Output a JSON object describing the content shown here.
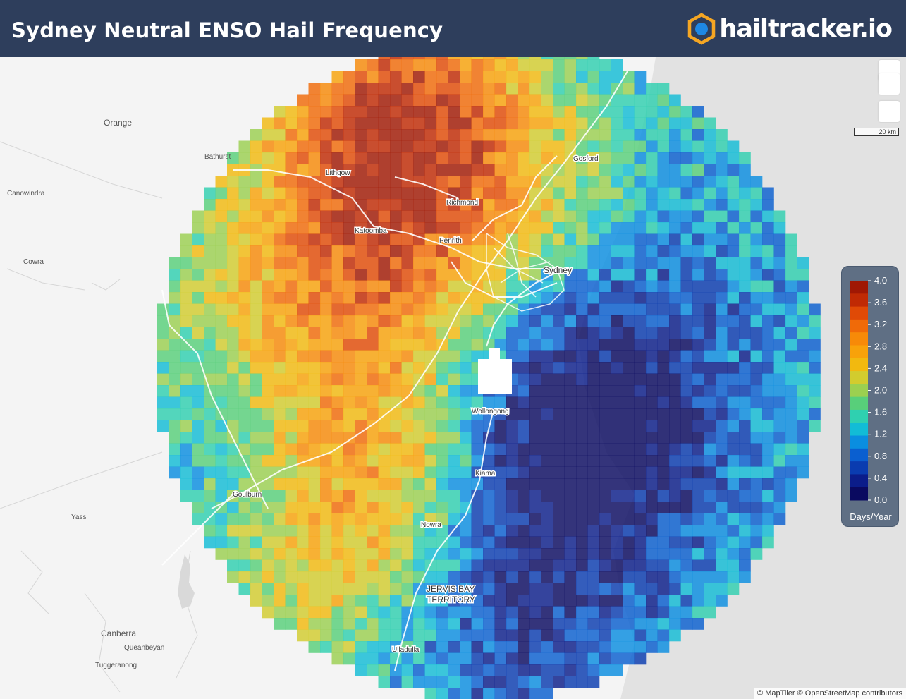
{
  "header": {
    "title": "Sydney Neutral ENSO Hail Frequency",
    "brand": "hailtracker.io"
  },
  "colors": {
    "header_bg": "#2e3e5c",
    "legend_bg": "#5f6f84",
    "brand_orange": "#f5a623",
    "brand_blue": "#1e88e5"
  },
  "map": {
    "scale_label": "20 km",
    "attribution": "© MapTiler © OpenStreetMap contributors",
    "inland_places": [
      {
        "name": "Orange",
        "size": 12
      },
      {
        "name": "Bathurst",
        "size": 10
      },
      {
        "name": "Canowindra",
        "size": 10
      },
      {
        "name": "Cowra",
        "size": 10
      },
      {
        "name": "Yass",
        "size": 10
      },
      {
        "name": "Canberra",
        "size": 12
      },
      {
        "name": "Queanbeyan",
        "size": 10
      },
      {
        "name": "Tuggeranong",
        "size": 10
      }
    ],
    "overlay_places": [
      {
        "name": "Lithgow",
        "size": 10
      },
      {
        "name": "Richmond",
        "size": 10
      },
      {
        "name": "Gosford",
        "size": 10
      },
      {
        "name": "Katoomba",
        "size": 10
      },
      {
        "name": "Penrith",
        "size": 10
      },
      {
        "name": "Sydney",
        "size": 12
      },
      {
        "name": "Wollongong",
        "size": 10
      },
      {
        "name": "Kiama",
        "size": 10
      },
      {
        "name": "Goulburn",
        "size": 10
      },
      {
        "name": "Nowra",
        "size": 10
      },
      {
        "name": "JERVIS BAY",
        "size": 12
      },
      {
        "name": "TERRITORY",
        "size": 12
      },
      {
        "name": "Ulladulla",
        "size": 10
      }
    ]
  },
  "legend": {
    "title": "Days/Year",
    "unit": "Days/Year",
    "min": 0.0,
    "max": 4.0,
    "tick_labels": [
      "4.0",
      "3.6",
      "3.2",
      "2.8",
      "2.4",
      "2.0",
      "1.6",
      "1.2",
      "0.8",
      "0.4",
      "0.0"
    ],
    "color_stops": [
      "#0a0a60",
      "#0b1d8a",
      "#0a3cb0",
      "#0a5fd0",
      "#0a8ee0",
      "#12bcd6",
      "#2fd0b0",
      "#58cf7a",
      "#9bd050",
      "#d2cc2e",
      "#f2b90f",
      "#f8a20a",
      "#f78a08",
      "#f06a08",
      "#e04a06",
      "#c02a04",
      "#a01804"
    ]
  }
}
